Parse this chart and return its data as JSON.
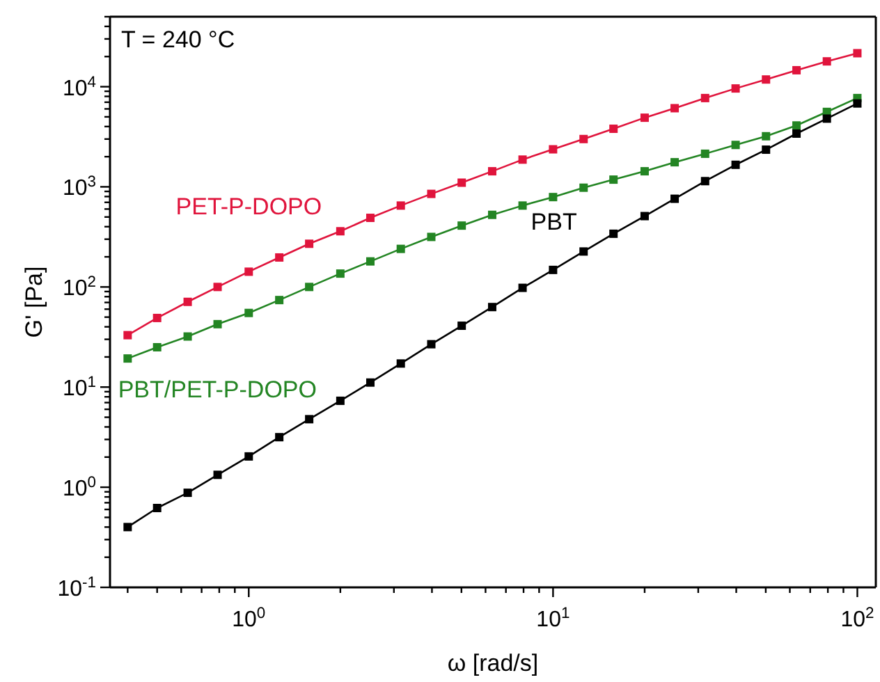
{
  "chart_data": {
    "type": "line",
    "xlabel": "ω [rad/s]",
    "ylabel": "G' [Pa]",
    "annotations": [
      "T = 240 °C"
    ],
    "log": "xy",
    "marker": "square",
    "line_style": "solid",
    "xlim": [
      0.35,
      115
    ],
    "ylim": [
      0.1,
      50000
    ],
    "xticks": [
      {
        "value": 0.4,
        "label": null
      },
      {
        "value": 0.5,
        "label": null
      },
      {
        "value": 0.6,
        "label": null
      },
      {
        "value": 0.7,
        "label": null
      },
      {
        "value": 0.8,
        "label": null
      },
      {
        "value": 0.9,
        "label": null
      },
      {
        "value": 1,
        "label": "10$^{0}$"
      },
      {
        "value": 2,
        "label": null
      },
      {
        "value": 3,
        "label": null
      },
      {
        "value": 4,
        "label": null
      },
      {
        "value": 5,
        "label": null
      },
      {
        "value": 6,
        "label": null
      },
      {
        "value": 7,
        "label": null
      },
      {
        "value": 8,
        "label": null
      },
      {
        "value": 9,
        "label": null
      },
      {
        "value": 10,
        "label": "10$^{1}$"
      },
      {
        "value": 20,
        "label": null
      },
      {
        "value": 30,
        "label": null
      },
      {
        "value": 40,
        "label": null
      },
      {
        "value": 50,
        "label": null
      },
      {
        "value": 60,
        "label": null
      },
      {
        "value": 70,
        "label": null
      },
      {
        "value": 80,
        "label": null
      },
      {
        "value": 90,
        "label": null
      },
      {
        "value": 100,
        "label": "10$^{2}$"
      }
    ],
    "yticks": [
      {
        "value": 0.1,
        "label": "10$^{-1}$"
      },
      {
        "value": 0.2,
        "label": null
      },
      {
        "value": 0.3,
        "label": null
      },
      {
        "value": 0.4,
        "label": null
      },
      {
        "value": 0.5,
        "label": null
      },
      {
        "value": 0.6,
        "label": null
      },
      {
        "value": 0.7,
        "label": null
      },
      {
        "value": 0.8,
        "label": null
      },
      {
        "value": 0.9,
        "label": null
      },
      {
        "value": 1,
        "label": "10$^{0}$"
      },
      {
        "value": 2,
        "label": null
      },
      {
        "value": 3,
        "label": null
      },
      {
        "value": 4,
        "label": null
      },
      {
        "value": 5,
        "label": null
      },
      {
        "value": 6,
        "label": null
      },
      {
        "value": 7,
        "label": null
      },
      {
        "value": 8,
        "label": null
      },
      {
        "value": 9,
        "label": null
      },
      {
        "value": 10,
        "label": "10$^{1}$"
      },
      {
        "value": 20,
        "label": null
      },
      {
        "value": 30,
        "label": null
      },
      {
        "value": 40,
        "label": null
      },
      {
        "value": 50,
        "label": null
      },
      {
        "value": 60,
        "label": null
      },
      {
        "value": 70,
        "label": null
      },
      {
        "value": 80,
        "label": null
      },
      {
        "value": 90,
        "label": null
      },
      {
        "value": 100,
        "label": "10$^{2}$"
      },
      {
        "value": 200,
        "label": null
      },
      {
        "value": 300,
        "label": null
      },
      {
        "value": 400,
        "label": null
      },
      {
        "value": 500,
        "label": null
      },
      {
        "value": 600,
        "label": null
      },
      {
        "value": 700,
        "label": null
      },
      {
        "value": 800,
        "label": null
      },
      {
        "value": 900,
        "label": null
      },
      {
        "value": 1000,
        "label": "10$^{3}$"
      },
      {
        "value": 2000,
        "label": null
      },
      {
        "value": 3000,
        "label": null
      },
      {
        "value": 4000,
        "label": null
      },
      {
        "value": 5000,
        "label": null
      },
      {
        "value": 6000,
        "label": null
      },
      {
        "value": 7000,
        "label": null
      },
      {
        "value": 8000,
        "label": null
      },
      {
        "value": 9000,
        "label": null
      },
      {
        "value": 10000,
        "label": "10$^{4}$"
      },
      {
        "value": 20000,
        "label": null
      },
      {
        "value": 30000,
        "label": null
      },
      {
        "value": 40000,
        "label": null
      },
      {
        "value": 50000,
        "label": null
      }
    ],
    "x": [
      0.4,
      0.5,
      0.63,
      0.79,
      1,
      1.26,
      1.58,
      2,
      2.51,
      3.16,
      3.98,
      5.01,
      6.31,
      7.94,
      10,
      12.6,
      15.8,
      20,
      25.1,
      31.6,
      39.8,
      50.1,
      63.1,
      79.4,
      100
    ],
    "series": [
      {
        "name": "PET-P-DOPO",
        "color": "#e0143c",
        "values": [
          33,
          49,
          71,
          100,
          142,
          197,
          270,
          360,
          490,
          650,
          850,
          1100,
          1430,
          1870,
          2370,
          3000,
          3800,
          4900,
          6100,
          7700,
          9600,
          11800,
          14600,
          17900,
          21600
        ]
      },
      {
        "name": "PBT/PET-P-DOPO",
        "color": "#238523",
        "values": [
          19.3,
          25,
          32,
          42.5,
          55,
          74,
          100,
          136,
          180,
          240,
          316,
          410,
          525,
          650,
          790,
          980,
          1180,
          1430,
          1760,
          2140,
          2620,
          3200,
          4100,
          5600,
          7700
        ]
      },
      {
        "name": "PBT",
        "color": "#000000",
        "values": [
          0.4,
          0.62,
          0.88,
          1.33,
          2.03,
          3.16,
          4.78,
          7.3,
          11.1,
          17.2,
          26.8,
          41,
          63,
          98,
          148,
          226,
          340,
          510,
          760,
          1140,
          1660,
          2350,
          3400,
          4800,
          6800
        ]
      }
    ]
  }
}
